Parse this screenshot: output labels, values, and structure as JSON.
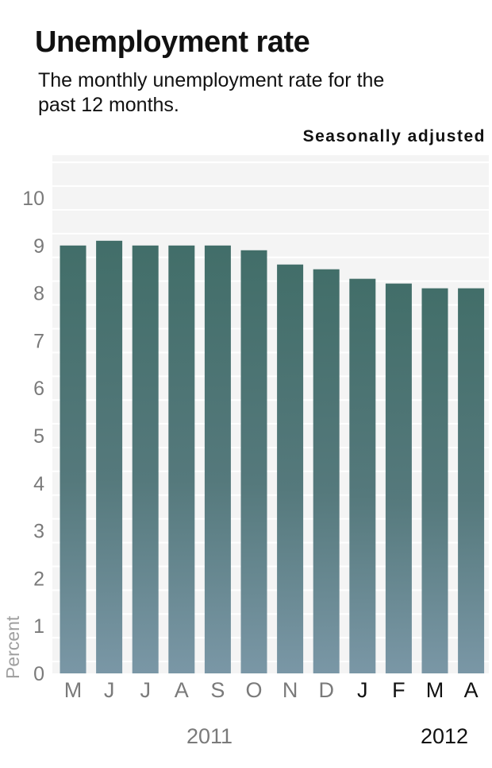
{
  "title": "Unemployment rate",
  "subtitle": "The monthly unemployment rate for the past 12 months.",
  "note": "Seasonally adjusted",
  "colors": {
    "bar_top": "#426e69",
    "bar_bottom": "#7a97a6",
    "band": "#f4f4f4",
    "axis_text_gray": "#7a7a7a",
    "axis_text_dark": "#111111"
  },
  "chart_data": {
    "type": "bar",
    "categories": [
      "M",
      "J",
      "J",
      "A",
      "S",
      "O",
      "N",
      "D",
      "J",
      "F",
      "M",
      "A"
    ],
    "values": [
      9.0,
      9.1,
      9.0,
      9.0,
      9.0,
      8.9,
      8.6,
      8.5,
      8.3,
      8.2,
      8.1,
      8.1
    ],
    "category_years": [
      2011,
      2011,
      2011,
      2011,
      2011,
      2011,
      2011,
      2011,
      2012,
      2012,
      2012,
      2012
    ],
    "year_labels": [
      "2011",
      "2012"
    ],
    "ylabel": "Percent",
    "yticks": [
      "0",
      "1",
      "2",
      "3",
      "4",
      "5",
      "6",
      "7",
      "8",
      "9",
      "10"
    ],
    "ylim": [
      0,
      10
    ],
    "grid": "alternating horizontal bands"
  }
}
